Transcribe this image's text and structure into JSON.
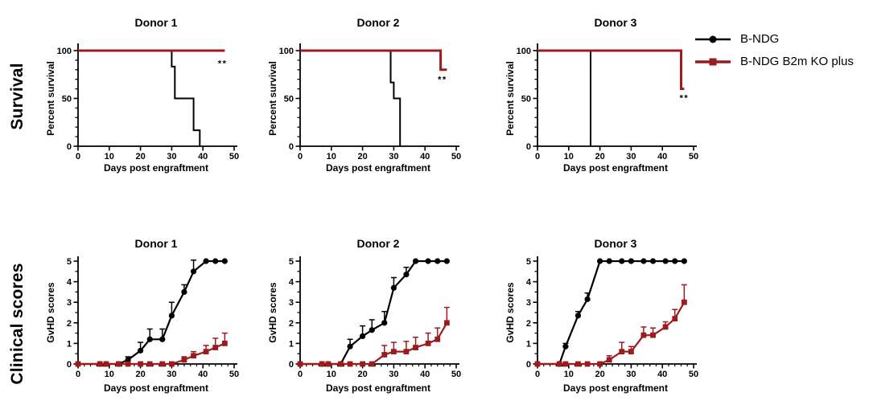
{
  "figure": {
    "row_labels": [
      {
        "text": "Survival"
      },
      {
        "text": "Clinical scores"
      }
    ],
    "legend": {
      "entries": [
        {
          "label": "B-NDG",
          "color": "#000000",
          "marker": "circle"
        },
        {
          "label": "B-NDG B2m KO plus",
          "color": "#9B1B1E",
          "marker": "square"
        }
      ]
    },
    "colors": {
      "black_series": "#000000",
      "red_series": "#9B1B1E"
    }
  },
  "chart_data": [
    {
      "id": "survival-donor-1",
      "type": "line",
      "layout": "survival",
      "title": "Donor 1",
      "xlabel": "Days post engraftment",
      "ylabel": "Percent survival",
      "xlim": [
        0,
        50
      ],
      "ylim": [
        0,
        100
      ],
      "xticks": [
        0,
        10,
        20,
        30,
        40,
        50
      ],
      "yticks": [
        0,
        50,
        100
      ],
      "xminor_step": 0,
      "yminor_step": 10,
      "annotation": {
        "text": "**",
        "x": 46.3,
        "y": 87
      },
      "series": [
        {
          "name": "B-NDG",
          "color": "#000000",
          "width": 2,
          "step": true,
          "points": [
            [
              0,
              100
            ],
            [
              30,
              100
            ],
            [
              30,
              83.3
            ],
            [
              31,
              83.3
            ],
            [
              31,
              50
            ],
            [
              37,
              50
            ],
            [
              37,
              16.7
            ],
            [
              39,
              16.7
            ],
            [
              39,
              0
            ]
          ]
        },
        {
          "name": "B-NDG B2m KO plus",
          "color": "#9B1B1E",
          "width": 3,
          "step": true,
          "points": [
            [
              0,
              100
            ],
            [
              47,
              100
            ]
          ]
        }
      ]
    },
    {
      "id": "survival-donor-2",
      "type": "line",
      "layout": "survival",
      "title": "Donor 2",
      "xlabel": "Days post engraftment",
      "ylabel": "Percent survival",
      "xlim": [
        0,
        50
      ],
      "ylim": [
        0,
        100
      ],
      "xticks": [
        0,
        10,
        20,
        30,
        40,
        50
      ],
      "yticks": [
        0,
        50,
        100
      ],
      "xminor_step": 0,
      "yminor_step": 10,
      "annotation": {
        "text": "**",
        "x": 45.6,
        "y": 70
      },
      "series": [
        {
          "name": "B-NDG",
          "color": "#000000",
          "width": 2,
          "step": true,
          "points": [
            [
              0,
              100
            ],
            [
              29,
              100
            ],
            [
              29,
              66.7
            ],
            [
              30,
              66.7
            ],
            [
              30,
              50
            ],
            [
              32,
              50
            ],
            [
              32,
              0
            ]
          ]
        },
        {
          "name": "B-NDG B2m KO plus",
          "color": "#9B1B1E",
          "width": 3,
          "step": true,
          "points": [
            [
              0,
              100
            ],
            [
              45,
              100
            ],
            [
              45,
              80
            ],
            [
              47,
              80
            ]
          ]
        }
      ]
    },
    {
      "id": "survival-donor-3",
      "type": "line",
      "layout": "survival",
      "title": "Donor 3",
      "xlabel": "Days post engraftment",
      "ylabel": "Percent survival",
      "xlim": [
        0,
        50
      ],
      "ylim": [
        0,
        100
      ],
      "xticks": [
        0,
        10,
        20,
        30,
        40,
        50
      ],
      "yticks": [
        0,
        50,
        100
      ],
      "xminor_step": 0,
      "yminor_step": 10,
      "annotation": {
        "text": "**",
        "x": 47,
        "y": 51
      },
      "series": [
        {
          "name": "B-NDG",
          "color": "#000000",
          "width": 2,
          "step": true,
          "points": [
            [
              0,
              100
            ],
            [
              17,
              100
            ],
            [
              17,
              0
            ]
          ]
        },
        {
          "name": "B-NDG B2m KO plus",
          "color": "#9B1B1E",
          "width": 3,
          "step": true,
          "points": [
            [
              0,
              100
            ],
            [
              46,
              100
            ],
            [
              46,
              60
            ],
            [
              47,
              60
            ]
          ]
        }
      ]
    },
    {
      "id": "clinical-donor-1",
      "type": "line",
      "layout": "clinical",
      "title": "Donor 1",
      "xlabel": "Days post engraftment",
      "ylabel": "GvHD scores",
      "xlim": [
        0,
        50
      ],
      "ylim": [
        0,
        5
      ],
      "xticks": [
        0,
        10,
        20,
        30,
        40,
        50
      ],
      "yticks": [
        0,
        1,
        2,
        3,
        4,
        5
      ],
      "xminor_step": 2,
      "yminor_step": 0.5,
      "x": [
        0,
        7,
        9,
        13,
        16,
        20,
        23,
        27,
        30,
        34,
        37,
        41,
        44,
        47
      ],
      "series": [
        {
          "name": "B-NDG",
          "color": "#000000",
          "width": 2.2,
          "marker": "circle",
          "values": [
            0,
            0,
            0,
            0,
            0.2,
            0.65,
            1.2,
            1.2,
            2.35,
            3.5,
            4.5,
            5,
            5,
            5
          ],
          "errors": [
            0,
            0,
            0,
            0,
            0.15,
            0.4,
            0.5,
            0.5,
            0.65,
            0.35,
            0.55,
            0,
            0,
            0
          ]
        },
        {
          "name": "B-NDG B2m KO plus",
          "color": "#9B1B1E",
          "width": 2.2,
          "marker": "square",
          "values": [
            0,
            0,
            0,
            0,
            0,
            0,
            0,
            0,
            0,
            0.2,
            0.4,
            0.6,
            0.8,
            1
          ],
          "errors": [
            0,
            0,
            0,
            0,
            0,
            0,
            0,
            0,
            0,
            0.15,
            0.2,
            0.3,
            0.45,
            0.5
          ]
        }
      ]
    },
    {
      "id": "clinical-donor-2",
      "type": "line",
      "layout": "clinical",
      "title": "Donor 2",
      "xlabel": "Days post engraftment",
      "ylabel": "GvHD scores",
      "xlim": [
        0,
        50
      ],
      "ylim": [
        0,
        5
      ],
      "xticks": [
        0,
        10,
        20,
        30,
        40,
        50
      ],
      "yticks": [
        0,
        1,
        2,
        3,
        4,
        5
      ],
      "xminor_step": 2,
      "yminor_step": 0.5,
      "x": [
        0,
        7,
        9,
        13,
        16,
        20,
        23,
        27,
        30,
        34,
        37,
        41,
        44,
        47
      ],
      "series": [
        {
          "name": "B-NDG",
          "color": "#000000",
          "width": 2.2,
          "marker": "circle",
          "values": [
            0,
            0,
            0,
            0,
            0.85,
            1.35,
            1.65,
            2,
            3.7,
            4.35,
            5,
            5,
            5,
            5
          ],
          "errors": [
            0,
            0,
            0,
            0,
            0.35,
            0.5,
            0.5,
            0.55,
            0.5,
            0.35,
            0,
            0,
            0,
            0
          ]
        },
        {
          "name": "B-NDG B2m KO plus",
          "color": "#9B1B1E",
          "width": 2.2,
          "marker": "square",
          "values": [
            0,
            0,
            0,
            0,
            0,
            0,
            0,
            0.45,
            0.6,
            0.6,
            0.8,
            1,
            1.2,
            2
          ],
          "errors": [
            0,
            0,
            0,
            0,
            0,
            0,
            0,
            0.45,
            0.45,
            0.5,
            0.5,
            0.5,
            0.55,
            0.75
          ]
        }
      ]
    },
    {
      "id": "clinical-donor-3",
      "type": "line",
      "layout": "clinical",
      "title": "Donor 3",
      "xlabel": "Days post engraftment",
      "ylabel": "GvHD scores",
      "xlim": [
        0,
        50
      ],
      "ylim": [
        0,
        5
      ],
      "xticks": [
        0,
        10,
        20,
        30,
        40,
        50
      ],
      "yticks": [
        0,
        1,
        2,
        3,
        4,
        5
      ],
      "xminor_step": 2,
      "yminor_step": 0.5,
      "x": [
        0,
        7,
        9,
        13,
        16,
        20,
        23,
        27,
        30,
        34,
        37,
        41,
        44,
        47
      ],
      "series": [
        {
          "name": "B-NDG",
          "color": "#000000",
          "width": 2.2,
          "marker": "circle",
          "values": [
            0,
            0,
            0.85,
            2.35,
            3.15,
            5,
            5,
            5,
            5,
            5,
            5,
            5,
            5,
            5
          ],
          "errors": [
            0,
            0,
            0.15,
            0.2,
            0.3,
            0,
            0,
            0,
            0,
            0,
            0,
            0,
            0,
            0
          ]
        },
        {
          "name": "B-NDG B2m KO plus",
          "color": "#9B1B1E",
          "width": 2.2,
          "marker": "square",
          "values": [
            0,
            0,
            0,
            0,
            0,
            0,
            0.2,
            0.6,
            0.6,
            1.4,
            1.4,
            1.8,
            2.2,
            3
          ],
          "errors": [
            0,
            0,
            0,
            0,
            0,
            0,
            0.2,
            0.45,
            0.25,
            0.4,
            0.35,
            0.25,
            0.45,
            0.85
          ]
        }
      ]
    }
  ]
}
